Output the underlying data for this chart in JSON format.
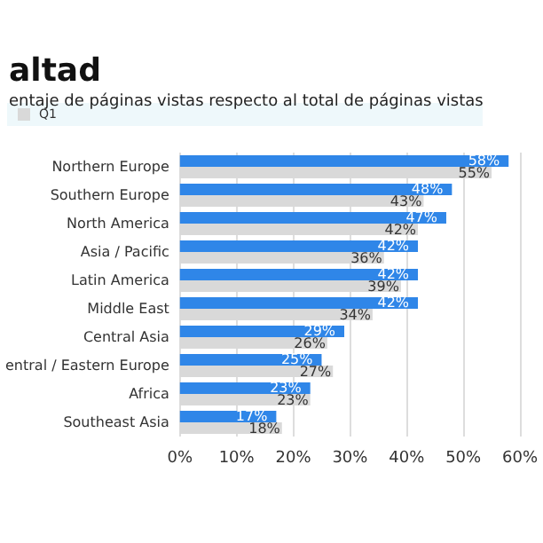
{
  "chart_data": {
    "type": "bar",
    "orientation": "horizontal",
    "title": "altad",
    "subtitle": "entaje de páginas vistas respecto al total de páginas vistas",
    "categories": [
      "Northern Europe",
      "Southern Europe",
      "North America",
      "Asia / Pacific",
      "Latin America",
      "Middle East",
      "Central Asia",
      "entral / Eastern Europe",
      "Africa",
      "Southeast Asia"
    ],
    "series": [
      {
        "color": "#2f86e8",
        "values": [
          58,
          48,
          47,
          42,
          42,
          42,
          29,
          25,
          23,
          17
        ],
        "value_labels": [
          "58%",
          "48%",
          "47%",
          "42%",
          "42%",
          "42%",
          "29%",
          "25%",
          "23%",
          "17%"
        ]
      },
      {
        "name": "Q1",
        "color": "#d9d9d9",
        "values": [
          55,
          43,
          42,
          36,
          39,
          34,
          26,
          27,
          23,
          18
        ],
        "value_labels": [
          "55%",
          "43%",
          "42%",
          "36%",
          "39%",
          "34%",
          "26%",
          "27%",
          "23%",
          "18%"
        ]
      }
    ],
    "xlim": [
      0,
      60
    ],
    "xticks": [
      {
        "value": 0,
        "label": "0%"
      },
      {
        "value": 10,
        "label": "10%"
      },
      {
        "value": 20,
        "label": "20%"
      },
      {
        "value": 30,
        "label": "30%"
      },
      {
        "value": 40,
        "label": "40%"
      },
      {
        "value": 50,
        "label": "50%"
      },
      {
        "value": 60,
        "label": "60%"
      }
    ],
    "grid": "x",
    "legend": "top left"
  }
}
